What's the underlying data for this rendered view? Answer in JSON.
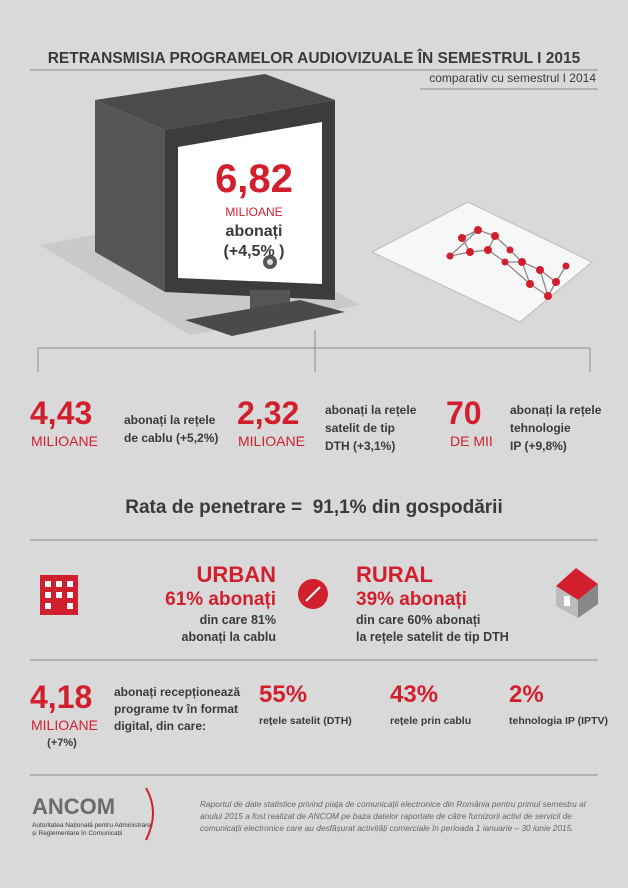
{
  "header": {
    "title": "RETRANSMISIA PROGRAMELOR AUDIOVIZUALE ÎN SEMESTRUL I 2015",
    "subtitle": "comparativ cu semestrul I 2014"
  },
  "tv": {
    "number": "6,82",
    "unit": "MILIOANE",
    "label": "abonați",
    "change": "(+4,5% )"
  },
  "stats": [
    {
      "number": "4,43",
      "unit": "MILIOANE",
      "lines": [
        "abonați la rețele",
        "de cablu (+5,2%)"
      ]
    },
    {
      "number": "2,32",
      "unit": "MILIOANE",
      "lines": [
        "abonați la rețele",
        "satelit de tip",
        "DTH (+3,1%)"
      ]
    },
    {
      "number": "70",
      "unit": "DE MII",
      "lines": [
        "abonați la rețele",
        "tehnologie",
        "IP (+9,8%)"
      ]
    }
  ],
  "penetration": "Rata de penetrare =  91,1% din gospodării",
  "urban": {
    "title": "URBAN",
    "value": "61% abonați",
    "lines": [
      "din care 81%",
      "abonați la cablu"
    ]
  },
  "rural": {
    "title": "RURAL",
    "value": "39% abonați",
    "lines": [
      "din care 60% abonați",
      "la rețele satelit de tip DTH"
    ]
  },
  "digital": {
    "number": "4,18",
    "unit": "MILIOANE",
    "change": "(+7%)",
    "lines": [
      "abonați recepționează",
      "programe tv în format",
      "digital, din care:"
    ],
    "breakdown": [
      {
        "value": "55%",
        "label": "rețele satelit (DTH)"
      },
      {
        "value": "43%",
        "label": "rețele prin cablu"
      },
      {
        "value": "2%",
        "label": "tehnologia IP (IPTV)"
      }
    ]
  },
  "footer": {
    "logo": "ANCOM",
    "org": [
      "Autoritatea Națională pentru Administrare",
      "și Reglementare în Comunicații"
    ],
    "note": [
      "Raportul de date statistice privind piața de comunicații electronice din România pentru primul semestru al",
      "anului 2015 a fost realizat de ANCOM pe baza datelor raportate de către furnizorii activi de servicii de",
      "comunicații electronice care au desfășurat activități comerciale în perioada 1 ianuarie – 30 iunie 2015."
    ]
  }
}
